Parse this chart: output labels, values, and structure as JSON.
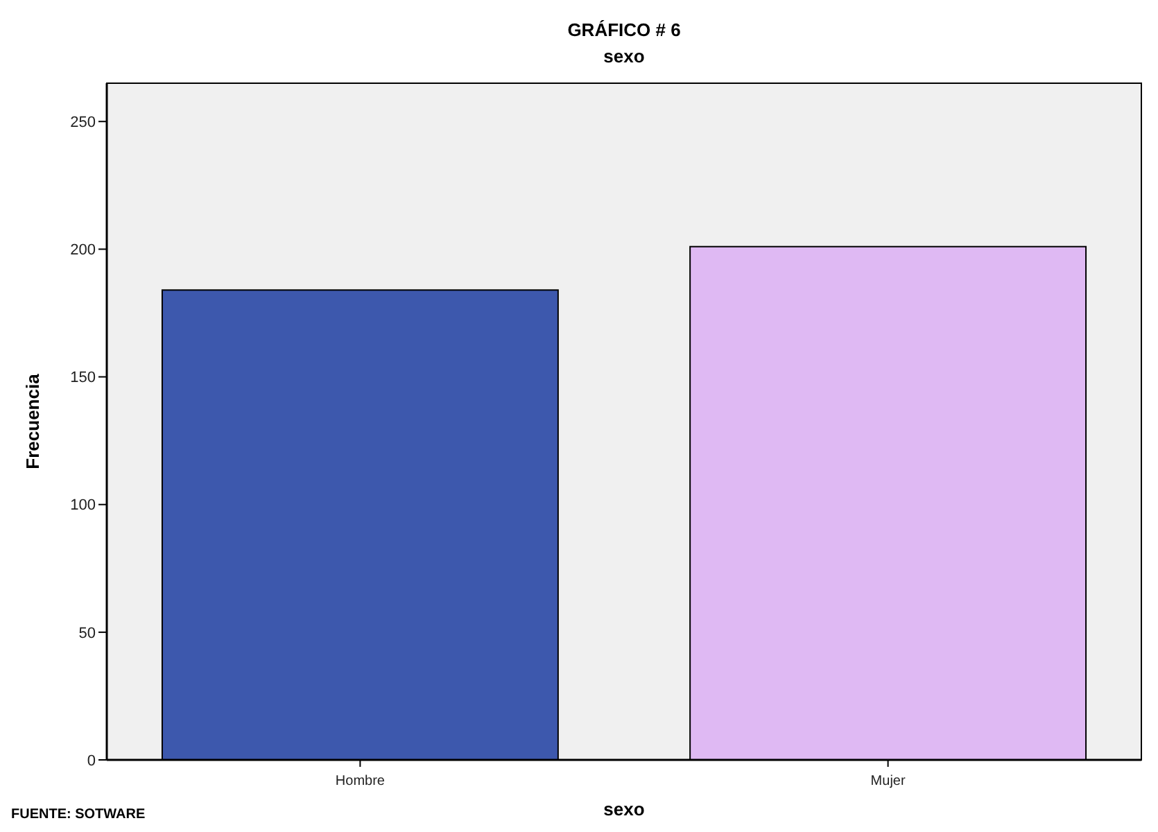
{
  "chart_data": {
    "type": "bar",
    "title": "GRÁFICO # 6",
    "subtitle": "sexo",
    "xlabel": "sexo",
    "ylabel": "Frecuencia",
    "categories": [
      "Hombre",
      "Mujer"
    ],
    "values": [
      184,
      201
    ],
    "colors": [
      "#3d58ad",
      "#dfb9f3"
    ],
    "ylim": [
      0,
      265
    ],
    "yticks": [
      0,
      50,
      100,
      150,
      200,
      250
    ],
    "grid": false,
    "annotations": [
      "FUENTE: SOTWARE"
    ]
  }
}
